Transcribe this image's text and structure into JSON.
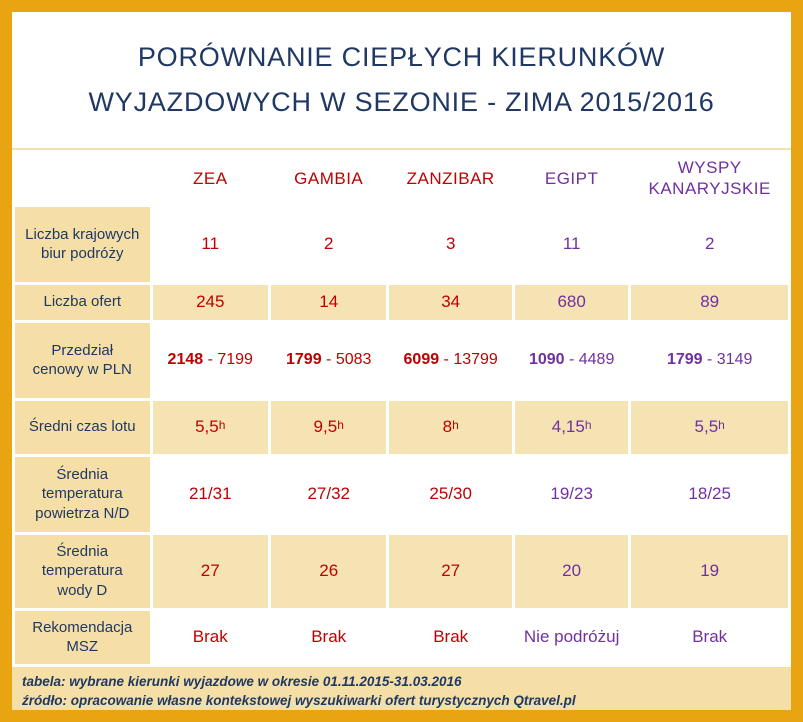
{
  "title": {
    "line1": "PORÓWNANIE CIEPŁYCH KIERUNKÓW",
    "line2": "WYJAZDOWYCH W SEZONIE - ZIMA 2015/2016"
  },
  "chart_data": {
    "type": "table",
    "title": "PORÓWNANIE CIEPŁYCH KIERUNKÓW WYJAZDOWYCH W SEZONIE - ZIMA 2015/2016",
    "columns": [
      {
        "label": "ZEA",
        "tone": "red"
      },
      {
        "label": "GAMBIA",
        "tone": "red"
      },
      {
        "label": "ZANZIBAR",
        "tone": "red"
      },
      {
        "label": "EGIPT",
        "tone": "purple"
      },
      {
        "label": "WYSPY KANARYJSKIE",
        "tone": "purple"
      }
    ],
    "rows": [
      {
        "label": "Liczba krajowych biur podróży",
        "values": [
          "11",
          "2",
          "3",
          "11",
          "2"
        ]
      },
      {
        "label": "Liczba ofert",
        "values": [
          "245",
          "14",
          "34",
          "680",
          "89"
        ]
      },
      {
        "label": "Przedział cenowy w PLN",
        "values": [
          "2148 - 7199",
          "1799 - 5083",
          "6099 - 13799",
          "1090 - 4489",
          "1799 - 3149"
        ],
        "bold_first_number": true
      },
      {
        "label": "Średni czas lotu",
        "values": [
          "5,5h",
          "9,5h",
          "8h",
          "4,15h",
          "5,5h"
        ]
      },
      {
        "label": "Średnia temperatura powietrza N/D",
        "values": [
          "21/31",
          "27/32",
          "25/30",
          "19/23",
          "18/25"
        ]
      },
      {
        "label": "Średnia temperatura wody D",
        "values": [
          "27",
          "26",
          "27",
          "20",
          "19"
        ]
      },
      {
        "label": "Rekomendacja MSZ",
        "values": [
          "Brak",
          "Brak",
          "Brak",
          "Nie podróżuj",
          "Brak"
        ]
      }
    ]
  },
  "footer": {
    "line1": "tabela: wybrane kierunki wyjazdowe w okresie 01.11.2015-31.03.2016",
    "line2": "źródło: opracowanie własne kontekstowej wyszukiwarki ofert turystycznych Qtravel.pl"
  },
  "colors": {
    "frame": "#E9A511",
    "navy": "#1F3864",
    "red": "#C00000",
    "purple": "#7030A0",
    "beige": "#F5DFA6",
    "beige_shaded": "#F6E3B3"
  }
}
